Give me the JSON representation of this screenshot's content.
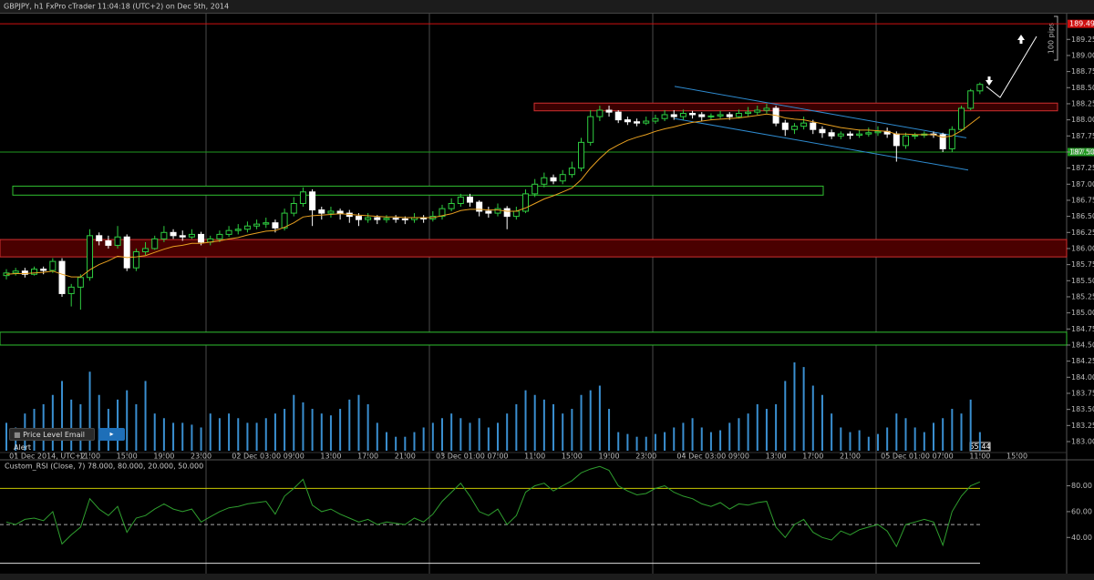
{
  "header": {
    "title": "GBPJPY, h1 FxPro cTrader 11:04:18 (UTC+2) on Dec 5th, 2014"
  },
  "buttons": [
    "Price Level Email Alert",
    "▸"
  ],
  "time_tag": "55:44",
  "chart_data": [
    {
      "type": "candlestick",
      "categories": [
        null,
        "01 Dec 2014, UTC+2",
        null,
        null,
        null,
        null,
        null,
        null,
        null,
        "11:00",
        null,
        null,
        null,
        "15:00",
        null,
        null,
        null,
        "19:00",
        null,
        null,
        null,
        "23:00",
        null,
        null,
        null,
        "02 Dec 03:00",
        null,
        null,
        null,
        null,
        null,
        "09:00",
        null,
        null,
        null,
        "13:00",
        null,
        null,
        null,
        "17:00",
        null,
        null,
        null,
        "21:00",
        null,
        null,
        null,
        "03 Dec 01:00",
        null,
        null,
        null,
        null,
        null,
        "07:00",
        null,
        null,
        null,
        "11:00",
        null,
        null,
        null,
        "15:00",
        null,
        null,
        null,
        "19:00",
        null,
        null,
        null,
        "23:00",
        null,
        null,
        null,
        "04 Dec 03:00",
        null,
        null,
        null,
        null,
        null,
        "09:00",
        null,
        null,
        null,
        "13:00",
        null,
        null,
        null,
        "17:00",
        null,
        null,
        null,
        "21:00",
        null,
        null,
        null,
        "05 Dec 01:00",
        null,
        null,
        null,
        null,
        null,
        "07:00",
        null,
        null,
        null,
        "11:00",
        null,
        null,
        null,
        "15:00"
      ],
      "open": [
        185.58,
        185.62,
        185.65,
        185.6,
        185.68,
        185.66,
        185.8,
        185.3,
        185.4,
        185.55,
        186.2,
        186.12,
        186.05,
        186.18,
        185.7,
        185.95,
        186.0,
        186.15,
        186.25,
        186.2,
        186.18,
        186.22,
        186.1,
        186.15,
        186.22,
        186.28,
        186.3,
        186.35,
        186.38,
        186.4,
        186.32,
        186.55,
        186.7,
        186.88,
        186.6,
        186.55,
        186.58,
        186.55,
        186.5,
        186.45,
        186.48,
        186.45,
        186.47,
        186.46,
        186.45,
        186.48,
        186.46,
        186.5,
        186.62,
        186.7,
        186.8,
        186.72,
        186.58,
        186.55,
        186.62,
        186.5,
        186.58,
        186.85,
        187.0,
        187.1,
        187.05,
        187.15,
        187.25,
        187.65,
        188.05,
        188.15,
        188.12,
        188.0,
        187.97,
        187.95,
        187.98,
        188.02,
        188.08,
        188.05,
        188.1,
        188.08,
        188.05,
        188.06,
        188.08,
        188.05,
        188.1,
        188.12,
        188.15,
        188.18,
        187.95,
        187.85,
        187.9,
        187.95,
        187.85,
        187.8,
        187.75,
        187.78,
        187.76,
        187.78,
        187.8,
        187.82,
        187.78,
        187.6,
        187.75,
        187.76,
        187.78,
        187.77,
        187.55,
        187.85,
        188.18,
        188.45,
        null,
        null,
        null,
        null
      ],
      "high": [
        185.68,
        185.7,
        185.7,
        185.72,
        185.72,
        185.85,
        185.85,
        185.45,
        185.6,
        186.3,
        186.25,
        186.2,
        186.35,
        186.22,
        186.0,
        186.1,
        186.2,
        186.35,
        186.3,
        186.28,
        186.3,
        186.26,
        186.2,
        186.28,
        186.35,
        186.38,
        186.42,
        186.45,
        186.48,
        186.45,
        186.62,
        186.8,
        186.95,
        186.92,
        186.65,
        186.65,
        186.62,
        186.6,
        186.55,
        186.55,
        186.52,
        186.52,
        186.52,
        186.5,
        186.55,
        186.52,
        186.58,
        186.68,
        186.78,
        186.85,
        186.85,
        186.75,
        186.65,
        186.7,
        186.66,
        186.65,
        186.92,
        187.08,
        187.18,
        187.15,
        187.22,
        187.35,
        187.72,
        188.15,
        188.22,
        188.22,
        188.15,
        188.05,
        188.02,
        188.05,
        188.08,
        188.15,
        188.15,
        188.16,
        188.14,
        188.12,
        188.1,
        188.14,
        188.12,
        188.16,
        188.2,
        188.22,
        188.25,
        188.22,
        188.0,
        187.95,
        188.05,
        188.0,
        187.9,
        187.85,
        187.82,
        187.82,
        187.85,
        187.88,
        187.9,
        187.88,
        187.82,
        187.8,
        187.8,
        187.82,
        187.82,
        187.8,
        187.9,
        188.22,
        188.48,
        188.58,
        null,
        null,
        null,
        null
      ],
      "low": [
        185.52,
        185.58,
        185.55,
        185.58,
        185.6,
        185.62,
        185.25,
        185.1,
        185.05,
        185.5,
        186.05,
        186.0,
        186.0,
        185.65,
        185.65,
        185.9,
        185.98,
        186.1,
        186.15,
        186.12,
        186.15,
        186.05,
        186.05,
        186.1,
        186.18,
        186.22,
        186.25,
        186.3,
        186.32,
        186.25,
        186.28,
        186.5,
        186.65,
        186.35,
        186.45,
        186.48,
        186.45,
        186.4,
        186.35,
        186.4,
        186.38,
        186.4,
        186.4,
        186.38,
        186.4,
        186.4,
        186.42,
        186.45,
        186.58,
        186.65,
        186.65,
        186.5,
        186.48,
        186.5,
        186.3,
        186.45,
        186.55,
        186.8,
        186.95,
        187.0,
        187.0,
        187.1,
        187.2,
        187.6,
        187.98,
        188.05,
        187.95,
        187.92,
        187.9,
        187.92,
        187.94,
        187.98,
        188.0,
        188.0,
        188.02,
        187.98,
        188.0,
        188.02,
        188.0,
        188.02,
        188.05,
        188.08,
        188.1,
        187.9,
        187.75,
        187.78,
        187.85,
        187.78,
        187.72,
        187.7,
        187.7,
        187.7,
        187.72,
        187.74,
        187.75,
        187.72,
        187.35,
        187.55,
        187.7,
        187.72,
        187.72,
        187.5,
        187.5,
        187.82,
        188.15,
        188.4,
        null,
        null,
        null,
        null
      ],
      "close": [
        185.62,
        185.65,
        185.6,
        185.68,
        185.66,
        185.8,
        185.3,
        185.4,
        185.55,
        186.2,
        186.12,
        186.05,
        186.18,
        185.7,
        185.95,
        186.0,
        186.15,
        186.25,
        186.2,
        186.18,
        186.22,
        186.1,
        186.15,
        186.22,
        186.28,
        186.3,
        186.35,
        186.38,
        186.4,
        186.32,
        186.55,
        186.7,
        186.88,
        186.6,
        186.55,
        186.58,
        186.55,
        186.5,
        186.45,
        186.48,
        186.45,
        186.47,
        186.46,
        186.45,
        186.48,
        186.46,
        186.5,
        186.62,
        186.7,
        186.8,
        186.72,
        186.58,
        186.55,
        186.62,
        186.5,
        186.58,
        186.85,
        187.0,
        187.1,
        187.05,
        187.15,
        187.25,
        187.65,
        188.05,
        188.15,
        188.12,
        188.0,
        187.97,
        187.95,
        187.98,
        188.02,
        188.08,
        188.05,
        188.1,
        188.08,
        188.05,
        188.06,
        188.08,
        188.05,
        188.1,
        188.12,
        188.15,
        188.18,
        187.95,
        187.85,
        187.9,
        187.95,
        187.85,
        187.8,
        187.75,
        187.78,
        187.76,
        187.78,
        187.8,
        187.82,
        187.78,
        187.6,
        187.75,
        187.76,
        187.78,
        187.77,
        187.55,
        187.85,
        188.18,
        188.45,
        188.55,
        null,
        null,
        null,
        null
      ],
      "colors": {
        "up": "#2ecc40",
        "down": "#ffffff"
      },
      "moving_average": {
        "color": "#e8a020",
        "values": [
          185.6,
          185.61,
          185.61,
          185.62,
          185.63,
          185.65,
          185.6,
          185.56,
          185.56,
          185.67,
          185.75,
          185.81,
          185.88,
          185.86,
          185.87,
          185.89,
          185.94,
          185.99,
          186.03,
          186.05,
          186.08,
          186.08,
          186.1,
          186.12,
          186.15,
          186.17,
          186.21,
          186.24,
          186.27,
          186.28,
          186.33,
          186.4,
          186.49,
          186.51,
          186.52,
          186.53,
          186.54,
          186.53,
          186.52,
          186.51,
          186.5,
          186.49,
          186.49,
          186.48,
          186.48,
          186.48,
          186.48,
          186.51,
          186.54,
          186.59,
          186.61,
          186.61,
          186.6,
          186.6,
          186.58,
          186.58,
          186.63,
          186.7,
          186.77,
          186.82,
          186.88,
          186.94,
          187.07,
          187.25,
          187.4,
          187.53,
          187.61,
          187.68,
          187.73,
          187.77,
          187.82,
          187.86,
          187.89,
          187.93,
          187.96,
          187.98,
          188.0,
          188.01,
          188.02,
          188.03,
          188.05,
          188.07,
          188.09,
          188.07,
          188.03,
          188.01,
          188.0,
          187.97,
          187.94,
          187.91,
          187.88,
          187.86,
          187.84,
          187.84,
          187.83,
          187.82,
          187.78,
          187.78,
          187.77,
          187.77,
          187.77,
          187.73,
          187.75,
          187.83,
          187.94,
          188.05,
          null,
          null,
          null,
          null
        ]
      },
      "volume": {
        "color": "#3a8fd0",
        "values": [
          30,
          25,
          40,
          45,
          50,
          60,
          75,
          55,
          50,
          85,
          60,
          45,
          55,
          65,
          50,
          75,
          40,
          35,
          30,
          30,
          28,
          25,
          40,
          35,
          40,
          35,
          30,
          30,
          35,
          40,
          45,
          60,
          52,
          45,
          40,
          38,
          45,
          55,
          60,
          50,
          30,
          20,
          15,
          15,
          20,
          25,
          30,
          35,
          40,
          35,
          30,
          35,
          25,
          30,
          40,
          50,
          65,
          60,
          55,
          50,
          40,
          45,
          60,
          65,
          70,
          45,
          20,
          18,
          15,
          15,
          18,
          20,
          25,
          30,
          35,
          25,
          20,
          22,
          30,
          35,
          40,
          50,
          45,
          50,
          75,
          95,
          90,
          70,
          60,
          40,
          25,
          20,
          22,
          15,
          18,
          25,
          40,
          35,
          25,
          20,
          30,
          35,
          45,
          40,
          55,
          20,
          null,
          null,
          null,
          null
        ]
      },
      "ylim": [
        182.83,
        189.65
      ],
      "yticks": [
        {
          "value": 183,
          "label": "183.000"
        },
        {
          "value": 183.25,
          "label": "183.250"
        },
        {
          "value": 183.5,
          "label": "183.500"
        },
        {
          "value": 183.75,
          "label": "183.750"
        },
        {
          "value": 184,
          "label": "184.000"
        },
        {
          "value": 184.25,
          "label": "184.250"
        },
        {
          "value": 184.5,
          "label": "184.500"
        },
        {
          "value": 184.75,
          "label": "184.750"
        },
        {
          "value": 185,
          "label": "185.000"
        },
        {
          "value": 185.25,
          "label": "185.250"
        },
        {
          "value": 185.5,
          "label": "185.500"
        },
        {
          "value": 185.75,
          "label": "185.750"
        },
        {
          "value": 186,
          "label": "186.000"
        },
        {
          "value": 186.25,
          "label": "186.250"
        },
        {
          "value": 186.5,
          "label": "186.500"
        },
        {
          "value": 186.75,
          "label": "186.750"
        },
        {
          "value": 187,
          "label": "187.000"
        },
        {
          "value": 187.25,
          "label": "187.250"
        },
        {
          "value": 187.5,
          "label": "187.500"
        },
        {
          "value": 187.75,
          "label": "187.750"
        },
        {
          "value": 188,
          "label": "188.000"
        },
        {
          "value": 188.25,
          "label": "188.250"
        },
        {
          "value": 188.5,
          "label": "188.500"
        },
        {
          "value": 188.75,
          "label": "188.750"
        },
        {
          "value": 189,
          "label": "189.000"
        },
        {
          "value": 189.25,
          "label": "189.250"
        }
      ],
      "price_tags": [
        {
          "value": 189.492,
          "label": "189.492",
          "color": "#d01010"
        },
        {
          "value": 187.5,
          "label": "187.500",
          "color": "#1f9a1f"
        }
      ],
      "zones": [
        {
          "low": 188.14,
          "high": 188.26,
          "color": "#d03030",
          "fill": "#3a0000"
        },
        {
          "low": 186.83,
          "high": 186.97,
          "color": "#30c030",
          "fill": "#000000"
        },
        {
          "low": 185.87,
          "high": 186.14,
          "color": "#d03030",
          "fill": "#4a0000"
        },
        {
          "low": 184.5,
          "high": 184.7,
          "color": "#30c030",
          "fill": "#000000"
        }
      ],
      "channel": {
        "color": "#2e8bd0",
        "lines": [
          [
            188.52,
            187.72
          ],
          [
            188.02,
            187.22
          ]
        ]
      },
      "range_label": "100 pips"
    },
    {
      "type": "line",
      "title": "Custom_RSI (Close, 7) 78.000, 80.000, 20.000, 50.000",
      "color": "#2f9e2f",
      "values": [
        52,
        50,
        54,
        55,
        53,
        60,
        35,
        42,
        48,
        70,
        62,
        57,
        64,
        44,
        55,
        57,
        62,
        66,
        62,
        60,
        62,
        52,
        56,
        60,
        63,
        64,
        66,
        67,
        68,
        58,
        72,
        78,
        85,
        65,
        60,
        62,
        58,
        55,
        52,
        54,
        50,
        52,
        51,
        50,
        55,
        52,
        58,
        68,
        75,
        82,
        72,
        60,
        57,
        62,
        50,
        57,
        75,
        80,
        82,
        76,
        80,
        84,
        90,
        93,
        95,
        92,
        80,
        76,
        73,
        74,
        78,
        80,
        75,
        72,
        70,
        66,
        64,
        67,
        62,
        66,
        65,
        67,
        68,
        48,
        40,
        50,
        54,
        44,
        40,
        38,
        45,
        42,
        46,
        48,
        50,
        45,
        33,
        50,
        52,
        54,
        52,
        34,
        60,
        72,
        80,
        83,
        null,
        null,
        null,
        null
      ],
      "ylim": [
        12,
        98
      ],
      "yticks": [
        {
          "value": 40,
          "label": "40.00"
        },
        {
          "value": 60,
          "label": "60.00"
        },
        {
          "value": 80,
          "label": "80.00"
        }
      ],
      "levels": [
        {
          "value": 78,
          "color": "#c8c800",
          "dashed": false
        },
        {
          "value": 20,
          "color": "#dddddd",
          "dashed": false
        },
        {
          "value": 50,
          "color": "#aaaaaa",
          "dashed": true
        }
      ]
    }
  ]
}
